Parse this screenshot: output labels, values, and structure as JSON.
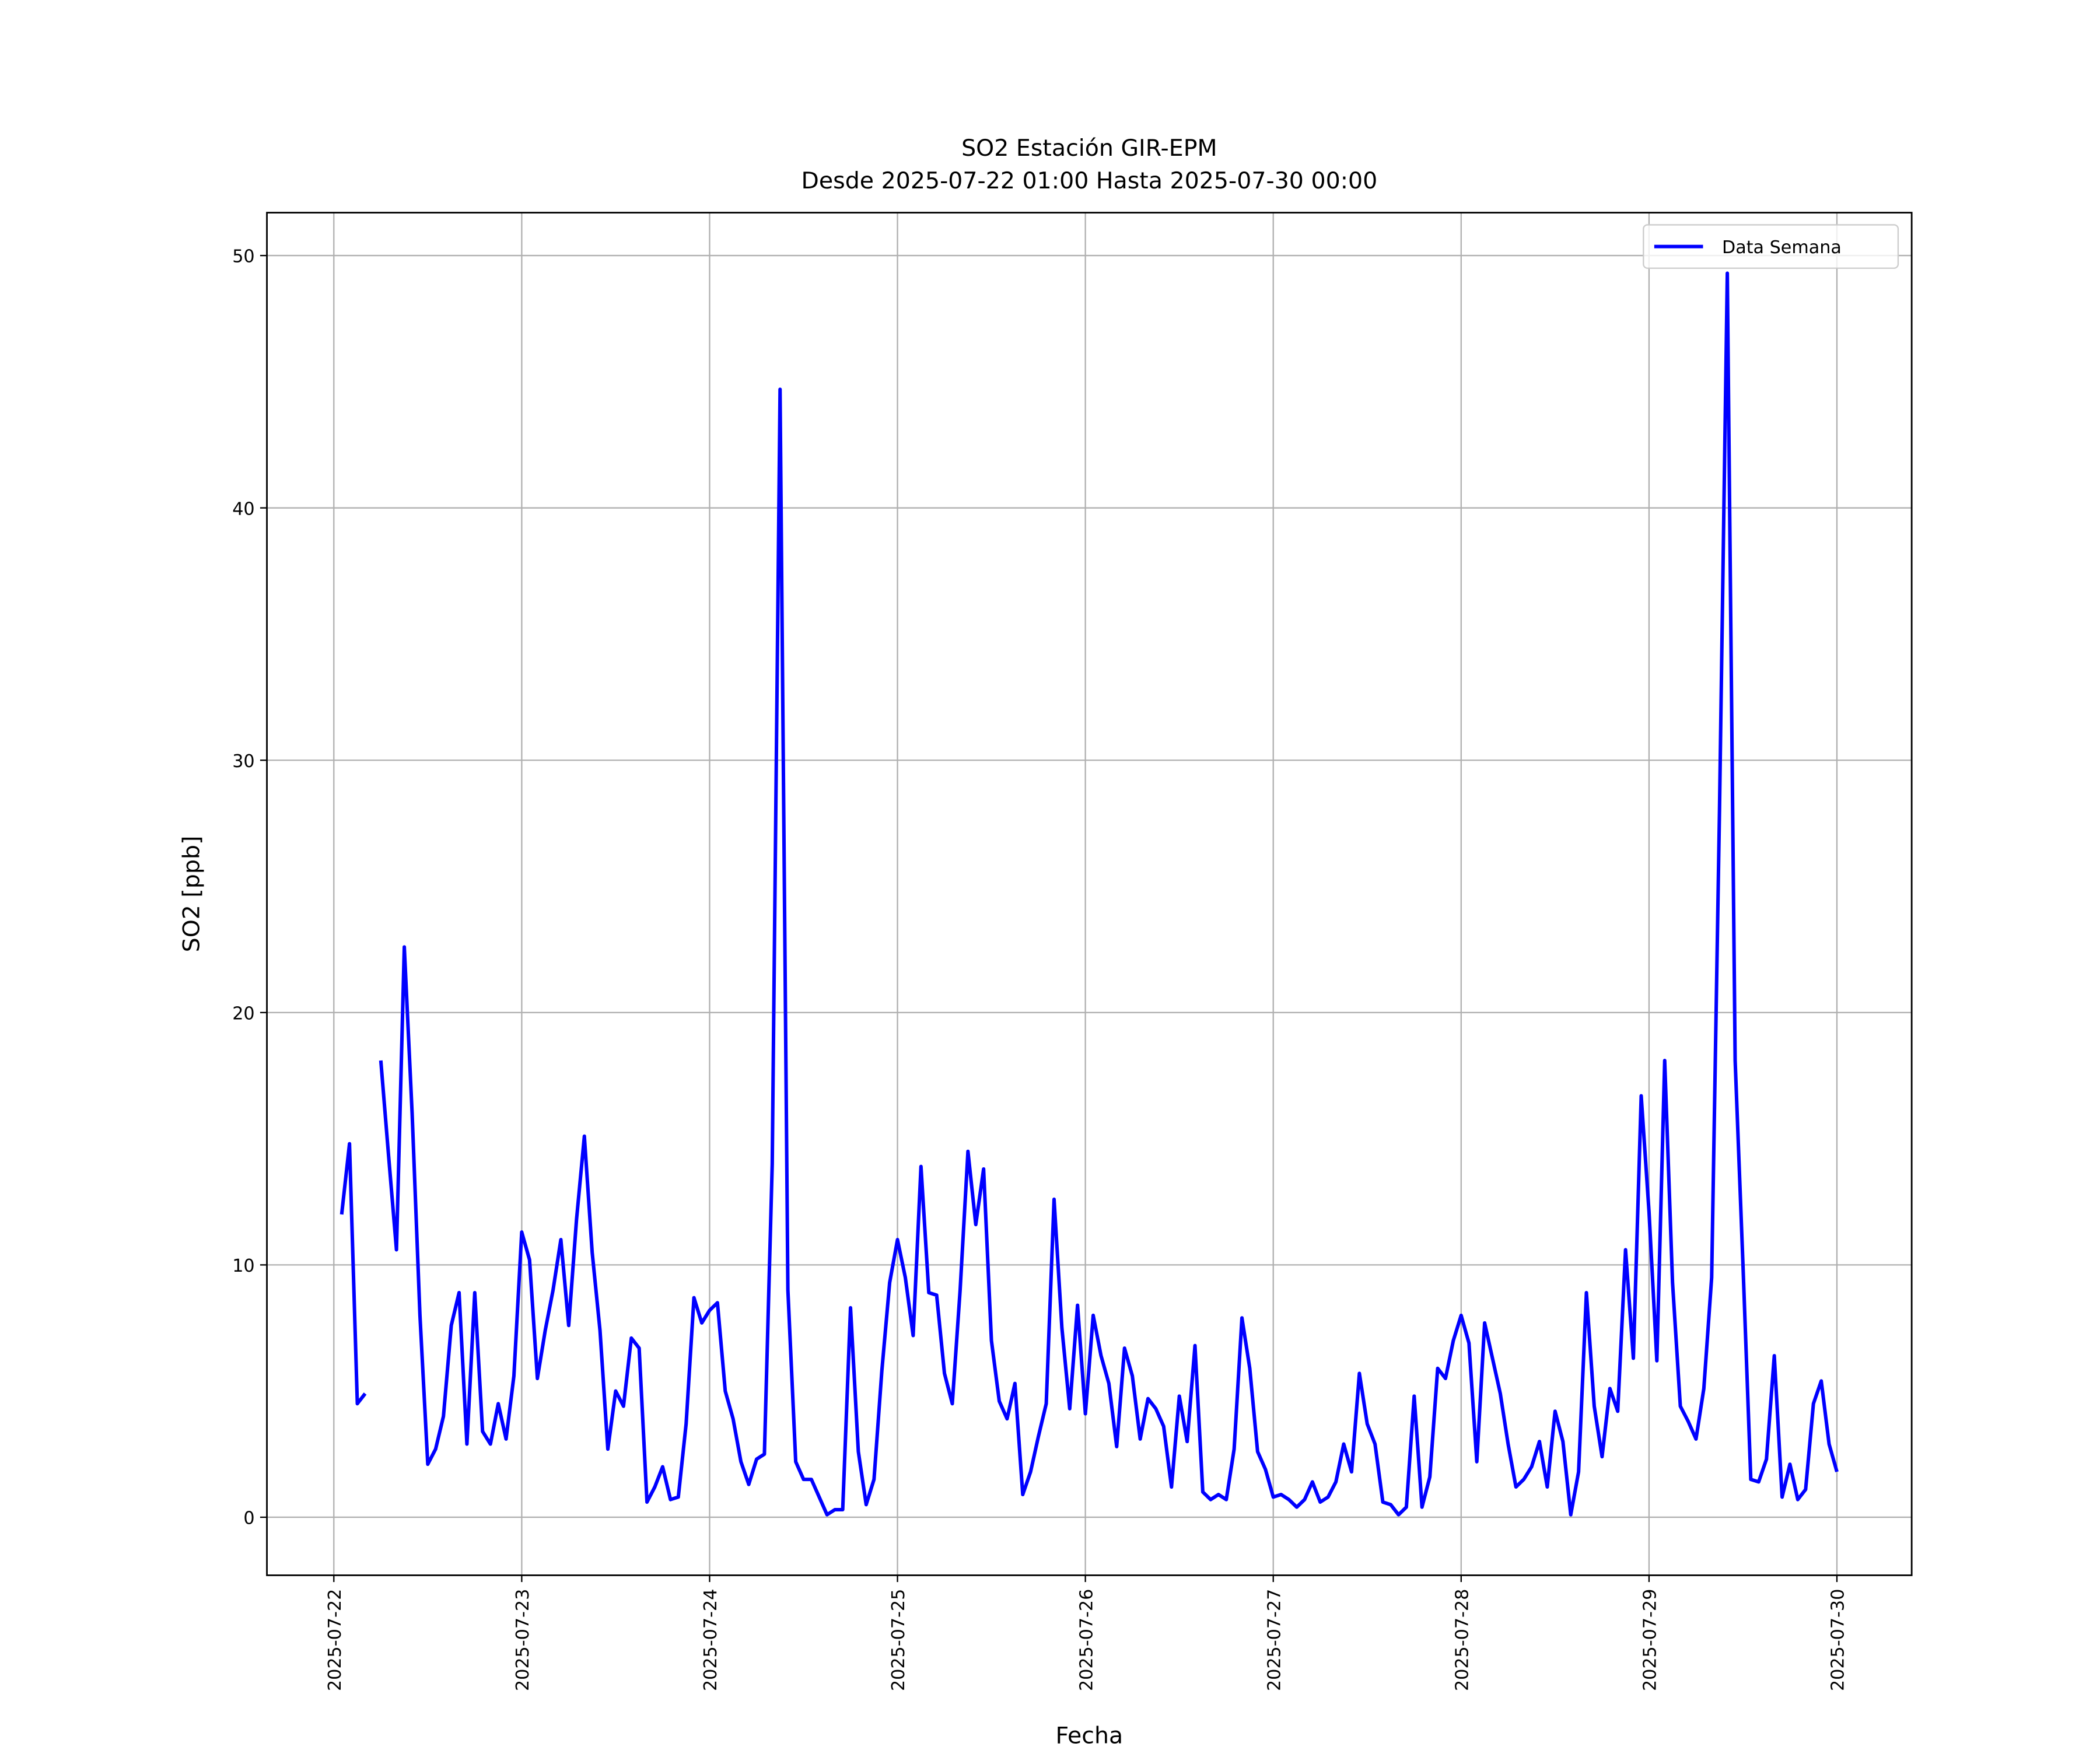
{
  "chart_data": {
    "type": "line",
    "title": "SO2 Estación GIR-EPM",
    "subtitle": "Desde 2025-07-22 01:00 Hasta 2025-07-30 00:00",
    "xlabel": "Fecha",
    "ylabel": "SO2 [ppb]",
    "x": [
      "2025-07-22 01:00",
      "2025-07-22 02:00",
      "2025-07-22 03:00",
      "2025-07-22 04:00",
      "2025-07-22 05:00",
      "2025-07-22 06:00",
      "2025-07-22 07:00",
      "2025-07-22 08:00",
      "2025-07-22 09:00",
      "2025-07-22 10:00",
      "2025-07-22 11:00",
      "2025-07-22 12:00",
      "2025-07-22 13:00",
      "2025-07-22 14:00",
      "2025-07-22 15:00",
      "2025-07-22 16:00",
      "2025-07-22 17:00",
      "2025-07-22 18:00",
      "2025-07-22 19:00",
      "2025-07-22 20:00",
      "2025-07-22 21:00",
      "2025-07-22 22:00",
      "2025-07-22 23:00",
      "2025-07-23 00:00",
      "2025-07-23 01:00",
      "2025-07-23 02:00",
      "2025-07-23 03:00",
      "2025-07-23 04:00",
      "2025-07-23 05:00",
      "2025-07-23 06:00",
      "2025-07-23 07:00",
      "2025-07-23 08:00",
      "2025-07-23 09:00",
      "2025-07-23 10:00",
      "2025-07-23 11:00",
      "2025-07-23 12:00",
      "2025-07-23 13:00",
      "2025-07-23 14:00",
      "2025-07-23 15:00",
      "2025-07-23 16:00",
      "2025-07-23 17:00",
      "2025-07-23 18:00",
      "2025-07-23 19:00",
      "2025-07-23 20:00",
      "2025-07-23 21:00",
      "2025-07-23 22:00",
      "2025-07-23 23:00",
      "2025-07-24 00:00",
      "2025-07-24 01:00",
      "2025-07-24 02:00",
      "2025-07-24 03:00",
      "2025-07-24 04:00",
      "2025-07-24 05:00",
      "2025-07-24 06:00",
      "2025-07-24 07:00",
      "2025-07-24 08:00",
      "2025-07-24 09:00",
      "2025-07-24 10:00",
      "2025-07-24 11:00",
      "2025-07-24 12:00",
      "2025-07-24 13:00",
      "2025-07-24 14:00",
      "2025-07-24 15:00",
      "2025-07-24 16:00",
      "2025-07-24 17:00",
      "2025-07-24 18:00",
      "2025-07-24 19:00",
      "2025-07-24 20:00",
      "2025-07-24 21:00",
      "2025-07-24 22:00",
      "2025-07-24 23:00",
      "2025-07-25 00:00",
      "2025-07-25 01:00",
      "2025-07-25 02:00",
      "2025-07-25 03:00",
      "2025-07-25 04:00",
      "2025-07-25 05:00",
      "2025-07-25 06:00",
      "2025-07-25 07:00",
      "2025-07-25 08:00",
      "2025-07-25 09:00",
      "2025-07-25 10:00",
      "2025-07-25 11:00",
      "2025-07-25 12:00",
      "2025-07-25 13:00",
      "2025-07-25 14:00",
      "2025-07-25 15:00",
      "2025-07-25 16:00",
      "2025-07-25 17:00",
      "2025-07-25 18:00",
      "2025-07-25 19:00",
      "2025-07-25 20:00",
      "2025-07-25 21:00",
      "2025-07-25 22:00",
      "2025-07-25 23:00",
      "2025-07-26 00:00",
      "2025-07-26 01:00",
      "2025-07-26 02:00",
      "2025-07-26 03:00",
      "2025-07-26 04:00",
      "2025-07-26 05:00",
      "2025-07-26 06:00",
      "2025-07-26 07:00",
      "2025-07-26 08:00",
      "2025-07-26 09:00",
      "2025-07-26 10:00",
      "2025-07-26 11:00",
      "2025-07-26 12:00",
      "2025-07-26 13:00",
      "2025-07-26 14:00",
      "2025-07-26 15:00",
      "2025-07-26 16:00",
      "2025-07-26 17:00",
      "2025-07-26 18:00",
      "2025-07-26 19:00",
      "2025-07-26 20:00",
      "2025-07-26 21:00",
      "2025-07-26 22:00",
      "2025-07-26 23:00",
      "2025-07-27 00:00",
      "2025-07-27 01:00",
      "2025-07-27 02:00",
      "2025-07-27 03:00",
      "2025-07-27 04:00",
      "2025-07-27 05:00",
      "2025-07-27 06:00",
      "2025-07-27 07:00",
      "2025-07-27 08:00",
      "2025-07-27 09:00",
      "2025-07-27 10:00",
      "2025-07-27 11:00",
      "2025-07-27 12:00",
      "2025-07-27 13:00",
      "2025-07-27 14:00",
      "2025-07-27 15:00",
      "2025-07-27 16:00",
      "2025-07-27 17:00",
      "2025-07-27 18:00",
      "2025-07-27 19:00",
      "2025-07-27 20:00",
      "2025-07-27 21:00",
      "2025-07-27 22:00",
      "2025-07-27 23:00",
      "2025-07-28 00:00",
      "2025-07-28 01:00",
      "2025-07-28 02:00",
      "2025-07-28 03:00",
      "2025-07-28 04:00",
      "2025-07-28 05:00",
      "2025-07-28 06:00",
      "2025-07-28 07:00",
      "2025-07-28 08:00",
      "2025-07-28 09:00",
      "2025-07-28 10:00",
      "2025-07-28 11:00",
      "2025-07-28 12:00",
      "2025-07-28 13:00",
      "2025-07-28 14:00",
      "2025-07-28 15:00",
      "2025-07-28 16:00",
      "2025-07-28 17:00",
      "2025-07-28 18:00",
      "2025-07-28 19:00",
      "2025-07-28 20:00",
      "2025-07-28 21:00",
      "2025-07-28 22:00",
      "2025-07-28 23:00",
      "2025-07-29 00:00",
      "2025-07-29 01:00",
      "2025-07-29 02:00",
      "2025-07-29 03:00",
      "2025-07-29 04:00",
      "2025-07-29 05:00",
      "2025-07-29 06:00",
      "2025-07-29 07:00",
      "2025-07-29 08:00",
      "2025-07-29 09:00",
      "2025-07-29 10:00",
      "2025-07-29 11:00",
      "2025-07-29 12:00",
      "2025-07-29 13:00",
      "2025-07-29 14:00",
      "2025-07-29 15:00",
      "2025-07-29 16:00",
      "2025-07-29 17:00",
      "2025-07-29 18:00",
      "2025-07-29 19:00",
      "2025-07-29 20:00",
      "2025-07-29 21:00",
      "2025-07-29 22:00",
      "2025-07-29 23:00",
      "2025-07-30 00:00"
    ],
    "series": [
      {
        "name": "Data Semana",
        "color": "#0000ff",
        "values": [
          12.0,
          14.8,
          4.5,
          4.9,
          null,
          18.1,
          14.3,
          10.6,
          22.6,
          16,
          8,
          2.1,
          2.7,
          4.0,
          7.6,
          8.9,
          2.9,
          8.9,
          3.4,
          2.9,
          4.5,
          3.1,
          5.6,
          11.3,
          10.2,
          5.5,
          7.4,
          9.0,
          11.0,
          7.6,
          11.8,
          15.1,
          10.5,
          7.4,
          2.7,
          5.0,
          4.4,
          7.1,
          6.7,
          0.6,
          1.2,
          2.0,
          0.7,
          0.8,
          3.7,
          8.7,
          7.7,
          8.2,
          8.5,
          5.0,
          3.9,
          2.2,
          1.3,
          2.3,
          2.5,
          14,
          44.7,
          9,
          2.2,
          1.5,
          1.5,
          0.8,
          0.1,
          0.3,
          0.3,
          8.3,
          2.6,
          0.5,
          1.5,
          5.8,
          9.3,
          11.0,
          9.5,
          7.2,
          13.9,
          8.9,
          8.8,
          5.7,
          4.5,
          9.0,
          14.5,
          11.6,
          13.8,
          7.0,
          4.6,
          3.9,
          5.3,
          0.9,
          1.8,
          3.2,
          4.5,
          12.6,
          7.5,
          4.3,
          8.4,
          4.1,
          8.0,
          6.4,
          5.3,
          2.8,
          6.7,
          5.6,
          3.1,
          4.7,
          4.3,
          3.6,
          1.2,
          4.8,
          3.0,
          6.8,
          1.0,
          0.7,
          0.9,
          0.7,
          2.7,
          7.9,
          5.9,
          2.6,
          1.9,
          0.8,
          0.9,
          0.7,
          0.4,
          0.7,
          1.4,
          0.6,
          0.8,
          1.4,
          2.9,
          1.8,
          5.7,
          3.7,
          2.9,
          0.6,
          0.5,
          0.1,
          0.4,
          4.8,
          0.4,
          1.6,
          5.9,
          5.5,
          7.0,
          8.0,
          6.9,
          2.2,
          7.7,
          6.3,
          4.9,
          2.9,
          1.2,
          1.5,
          2.0,
          3.0,
          1.2,
          4.2,
          3.0,
          0.1,
          1.8,
          8.9,
          4.4,
          2.4,
          5.1,
          4.2,
          10.6,
          6.3,
          16.7,
          12.1,
          6.2,
          18.1,
          9.3,
          4.4,
          3.8,
          3.1,
          5.1,
          9.5,
          28,
          49.3,
          18.1,
          10.0,
          1.5,
          1.4,
          2.3,
          6.4,
          0.8,
          2.1,
          0.7,
          1.1,
          4.5,
          5.4,
          2.9,
          1.8
        ]
      }
    ],
    "xlim": [
      "2025-07-21 15:27",
      "2025-07-30 09:33"
    ],
    "xticks": [
      "2025-07-22",
      "2025-07-23",
      "2025-07-24",
      "2025-07-25",
      "2025-07-26",
      "2025-07-27",
      "2025-07-28",
      "2025-07-29",
      "2025-07-30"
    ],
    "ylim": [
      -2.3,
      51.7
    ],
    "yticks": [
      0,
      10,
      20,
      30,
      40,
      50
    ],
    "grid": true,
    "legend": "upper right"
  }
}
